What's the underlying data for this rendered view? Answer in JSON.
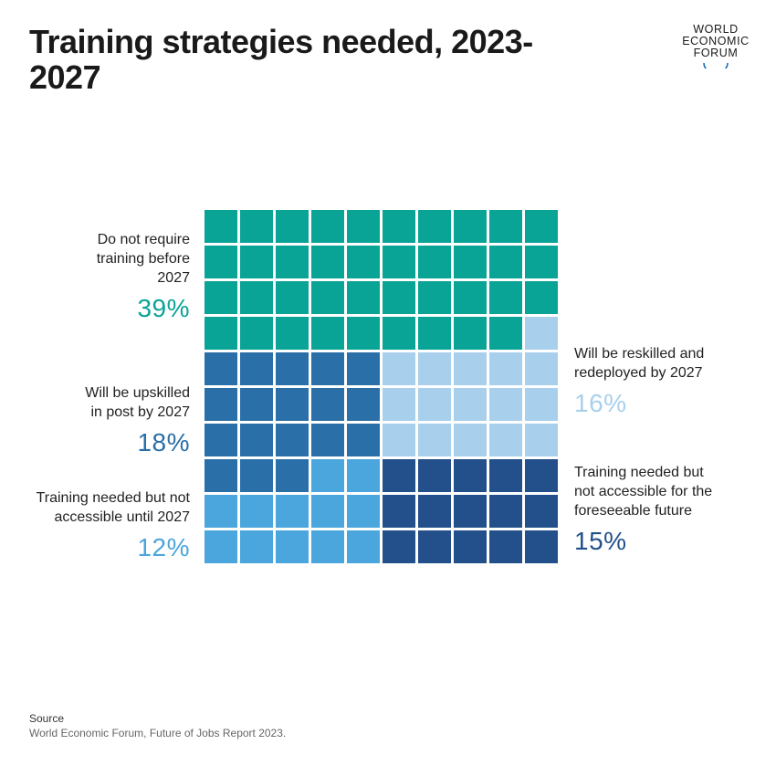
{
  "title": "Training strategies needed, 2023-2027",
  "logo": {
    "lines": [
      "WORLD",
      "ECONOMIC",
      "FORUM"
    ]
  },
  "chart_data": {
    "type": "waffle",
    "title": "Training strategies needed, 2023-2027",
    "grid": {
      "rows": 10,
      "cols": 10
    },
    "categories": [
      {
        "key": "no_training",
        "label": "Do not require training before 2027",
        "value": 39,
        "display": "39%",
        "color": "#0aa496"
      },
      {
        "key": "upskilled",
        "label": "Will be upskilled in post by 2027",
        "value": 18,
        "display": "18%",
        "color": "#2a6fa8"
      },
      {
        "key": "reskilled",
        "label": "Will be reskilled and redeployed by 2027",
        "value": 16,
        "display": "16%",
        "color": "#a8d0ec"
      },
      {
        "key": "not_accessible_2027",
        "label": "Training needed but not accessible until 2027",
        "value": 12,
        "display": "12%",
        "color": "#4aa6dc"
      },
      {
        "key": "not_accessible_future",
        "label": "Training needed but not accessible for the foreseeable future",
        "value": 15,
        "display": "15%",
        "color": "#23508a"
      }
    ],
    "cell_map": [
      "0000000000",
      "0000000000",
      "0000000000",
      "0000000002",
      "1111122222",
      "1111122222",
      "1111122222",
      "1113344444",
      "3333344444",
      "3333344444"
    ]
  },
  "labels": {
    "no_training": {
      "lines": [
        "Do not require",
        "training before",
        "2027"
      ],
      "pct": "39%"
    },
    "upskilled": {
      "lines": [
        "Will be upskilled",
        "in post by 2027"
      ],
      "pct": "18%"
    },
    "reskilled": {
      "lines": [
        "Will be reskilled and",
        "redeployed by 2027"
      ],
      "pct": "16%"
    },
    "not_accessible_2027": {
      "lines": [
        "Training needed but not",
        "accessible until 2027"
      ],
      "pct": "12%"
    },
    "not_accessible_future": {
      "lines": [
        "Training needed but",
        "not accessible for the",
        "foreseeable future"
      ],
      "pct": "15%"
    }
  },
  "source": {
    "heading": "Source",
    "text": "World Economic Forum, Future of Jobs Report 2023."
  }
}
